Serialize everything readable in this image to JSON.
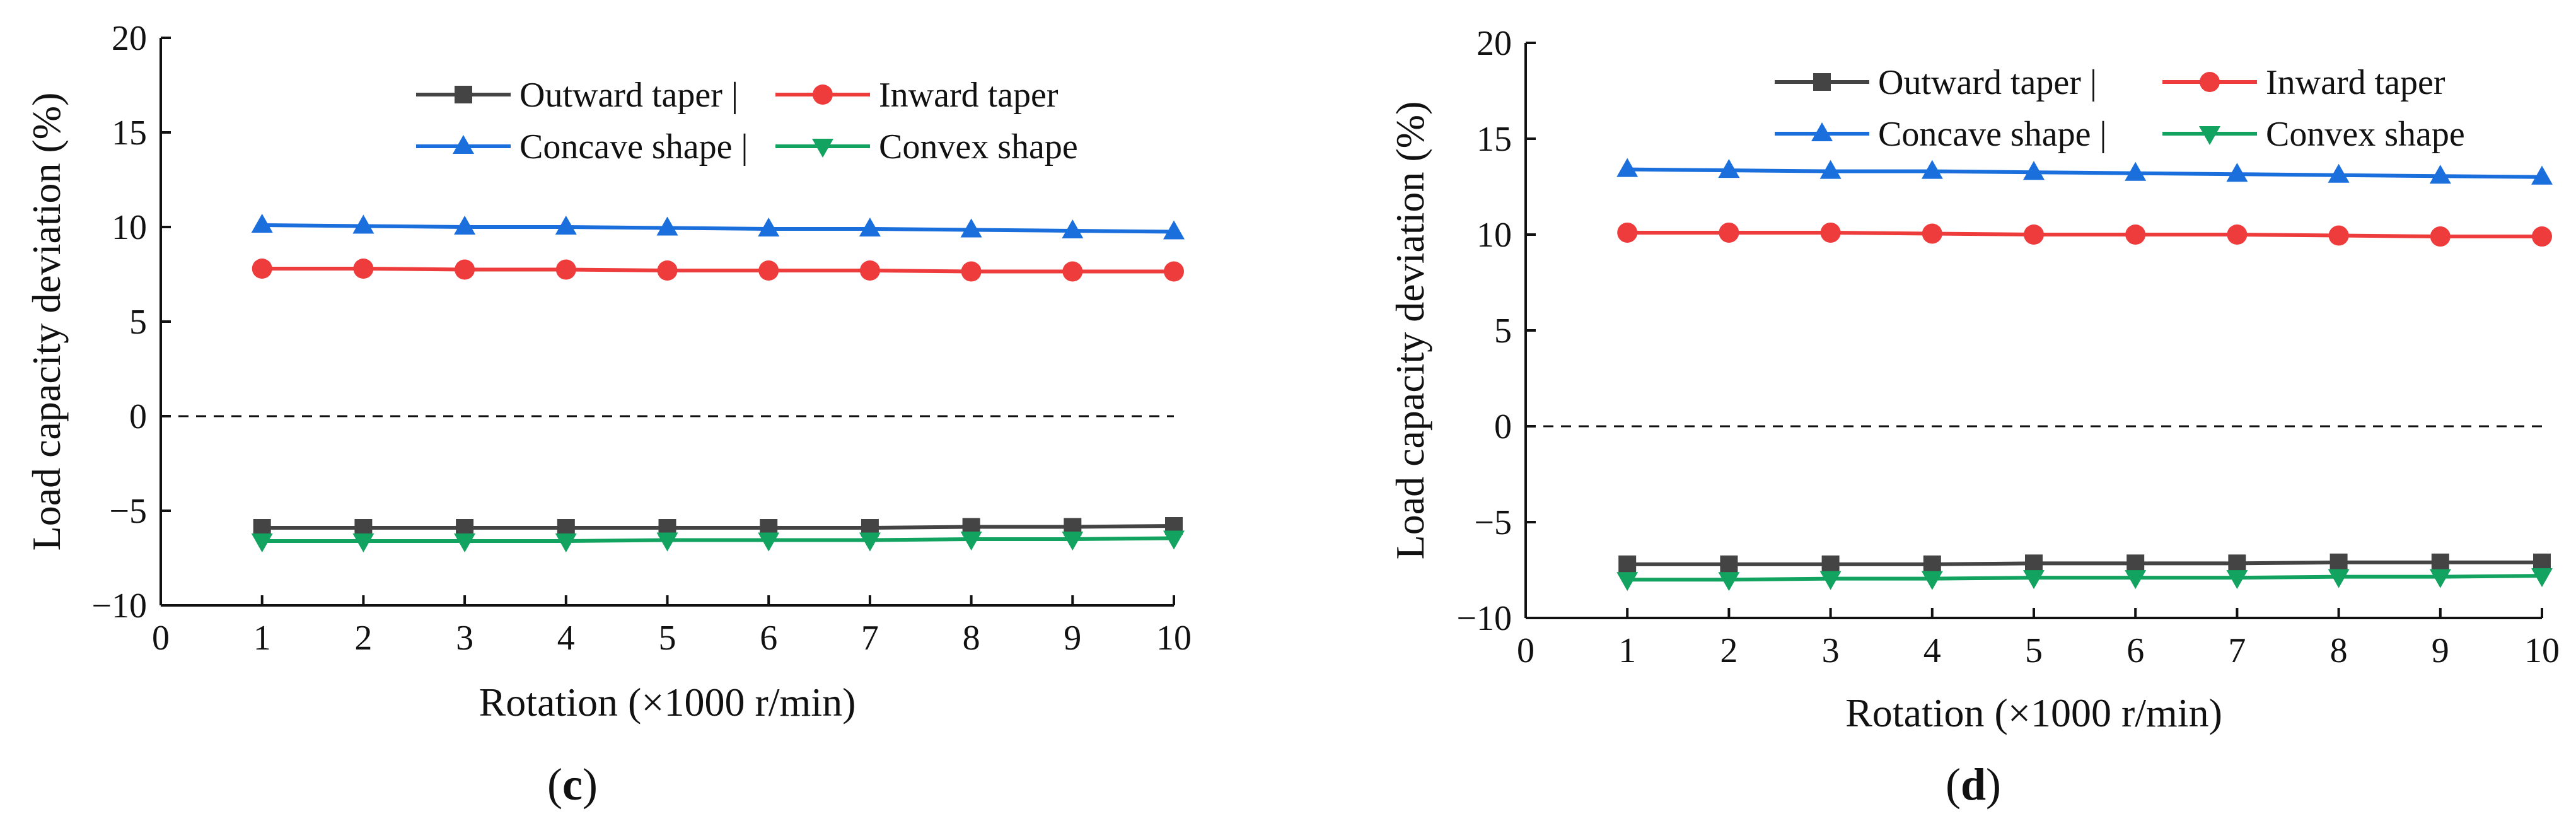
{
  "colors": {
    "outward": "#444444",
    "inward": "#ee3b3b",
    "concave": "#1a6fdc",
    "convex": "#12a360",
    "axis": "#111111"
  },
  "chart_data": [
    {
      "type": "line",
      "panel": "c",
      "panel_label": "c",
      "xlabel": "Rotation (×1000 r/min)",
      "ylabel": "Load capacity deviation (%)",
      "xlim": [
        0,
        10
      ],
      "ylim": [
        -10,
        20
      ],
      "x_ticks": [
        "0",
        "1",
        "2",
        "3",
        "4",
        "5",
        "6",
        "7",
        "8",
        "9",
        "10"
      ],
      "y_ticks": [
        "20",
        "15",
        "10",
        "5",
        "0",
        "−5",
        "−10"
      ],
      "reference_line_y": 0,
      "legend_position": "top-right",
      "x": [
        1,
        2,
        3,
        4,
        5,
        6,
        7,
        8,
        9,
        10
      ],
      "series": [
        {
          "name": "Outward taper",
          "legend_label": "Outward taper |",
          "marker": "square",
          "color_key": "outward",
          "values": [
            -5.9,
            -5.9,
            -5.9,
            -5.9,
            -5.9,
            -5.9,
            -5.9,
            -5.85,
            -5.85,
            -5.8
          ]
        },
        {
          "name": "Inward taper",
          "legend_label": "Inward taper",
          "marker": "circle",
          "color_key": "inward",
          "values": [
            7.8,
            7.8,
            7.75,
            7.75,
            7.7,
            7.7,
            7.7,
            7.65,
            7.65,
            7.65
          ]
        },
        {
          "name": "Concave shape",
          "legend_label": "Concave shape |",
          "marker": "triangle-up",
          "color_key": "concave",
          "values": [
            10.1,
            10.05,
            10.0,
            10.0,
            9.95,
            9.9,
            9.9,
            9.85,
            9.8,
            9.75
          ]
        },
        {
          "name": "Convex shape",
          "legend_label": "Convex shape",
          "marker": "triangle-down",
          "color_key": "convex",
          "values": [
            -6.6,
            -6.6,
            -6.6,
            -6.6,
            -6.55,
            -6.55,
            -6.55,
            -6.5,
            -6.5,
            -6.45
          ]
        }
      ]
    },
    {
      "type": "line",
      "panel": "d",
      "panel_label": "d",
      "xlabel": "Rotation (×1000 r/min)",
      "ylabel": "Load capacity deviation (%)",
      "xlim": [
        0,
        10
      ],
      "ylim": [
        -10,
        20
      ],
      "x_ticks": [
        "0",
        "1",
        "2",
        "3",
        "4",
        "5",
        "6",
        "7",
        "8",
        "9",
        "10"
      ],
      "y_ticks": [
        "20",
        "15",
        "10",
        "5",
        "0",
        "−5",
        "−10"
      ],
      "reference_line_y": 0,
      "legend_position": "top-right",
      "x": [
        1,
        2,
        3,
        4,
        5,
        6,
        7,
        8,
        9,
        10
      ],
      "series": [
        {
          "name": "Outward taper",
          "legend_label": "Outward taper |",
          "marker": "square",
          "color_key": "outward",
          "values": [
            -7.2,
            -7.2,
            -7.2,
            -7.2,
            -7.15,
            -7.15,
            -7.15,
            -7.1,
            -7.1,
            -7.1
          ]
        },
        {
          "name": "Inward taper",
          "legend_label": "Inward taper",
          "marker": "circle",
          "color_key": "inward",
          "values": [
            10.1,
            10.1,
            10.1,
            10.05,
            10.0,
            10.0,
            10.0,
            9.95,
            9.9,
            9.9
          ]
        },
        {
          "name": "Concave shape",
          "legend_label": "Concave shape |",
          "marker": "triangle-up",
          "color_key": "concave",
          "values": [
            13.4,
            13.35,
            13.3,
            13.3,
            13.25,
            13.2,
            13.15,
            13.1,
            13.05,
            13.0
          ]
        },
        {
          "name": "Convex shape",
          "legend_label": "Convex shape",
          "marker": "triangle-down",
          "color_key": "convex",
          "values": [
            -8.0,
            -8.0,
            -7.95,
            -7.95,
            -7.9,
            -7.9,
            -7.9,
            -7.85,
            -7.85,
            -7.8
          ]
        }
      ]
    }
  ]
}
